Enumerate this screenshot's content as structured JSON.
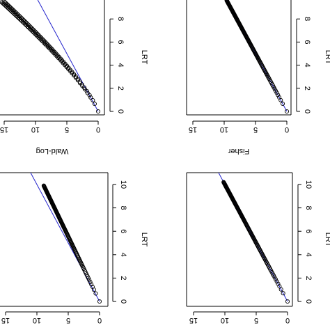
{
  "chart_data": [
    {
      "type": "scatter",
      "panel": "top-left",
      "title": "",
      "xlabel": "LRT",
      "ylabel": "Wald-Log",
      "xlim": [
        -0.5,
        10
      ],
      "ylim": [
        -0.5,
        16
      ],
      "x_ticks": [
        "0",
        "2",
        "4",
        "6",
        "8"
      ],
      "y_ticks": [
        "0",
        "5",
        "10",
        "15"
      ],
      "reference_line": "y = x",
      "curve": {
        "x_max": 9.5,
        "y_max": 15.0,
        "power": 1.25
      },
      "point_count": 130,
      "colors": {
        "points": "#000000",
        "line": "#2222cc"
      }
    },
    {
      "type": "scatter",
      "panel": "top-right",
      "title": "",
      "xlabel": "LRT",
      "ylabel": "Fisher",
      "xlim": [
        -0.5,
        10
      ],
      "ylim": [
        -0.5,
        16
      ],
      "x_ticks": [
        "0",
        "2",
        "4",
        "6",
        "8"
      ],
      "y_ticks": [
        "0",
        "5",
        "10",
        "15"
      ],
      "reference_line": "y = x",
      "curve": {
        "x_max": 9.6,
        "y_max": 9.6,
        "power": 1.0
      },
      "point_count": 130,
      "colors": {
        "points": "#000000",
        "line": "#2222cc"
      }
    },
    {
      "type": "scatter",
      "panel": "bottom-left",
      "title": "",
      "xlabel": "LRT",
      "ylabel": "",
      "xlim": [
        -0.5,
        11
      ],
      "ylim": [
        -0.5,
        16
      ],
      "x_ticks": [
        "0",
        "2",
        "4",
        "6",
        "8",
        "10"
      ],
      "y_ticks": [
        "0",
        "5",
        "10",
        "15"
      ],
      "reference_line": "y = x",
      "curve": {
        "x_max": 9.9,
        "y_max": 8.9,
        "power": 1.0
      },
      "point_count": 130,
      "colors": {
        "points": "#000000",
        "line": "#2222cc"
      }
    },
    {
      "type": "scatter",
      "panel": "bottom-right",
      "title": "",
      "xlabel": "LRT",
      "ylabel": "",
      "xlim": [
        -0.5,
        11
      ],
      "ylim": [
        -0.5,
        16
      ],
      "x_ticks": [
        "0",
        "2",
        "4",
        "6",
        "8",
        "10"
      ],
      "y_ticks": [
        "0",
        "5",
        "10",
        "15"
      ],
      "reference_line": "y = x",
      "curve": {
        "x_max": 10.2,
        "y_max": 10.2,
        "power": 1.0
      },
      "point_count": 130,
      "colors": {
        "points": "#000000",
        "line": "#2222cc"
      }
    }
  ]
}
